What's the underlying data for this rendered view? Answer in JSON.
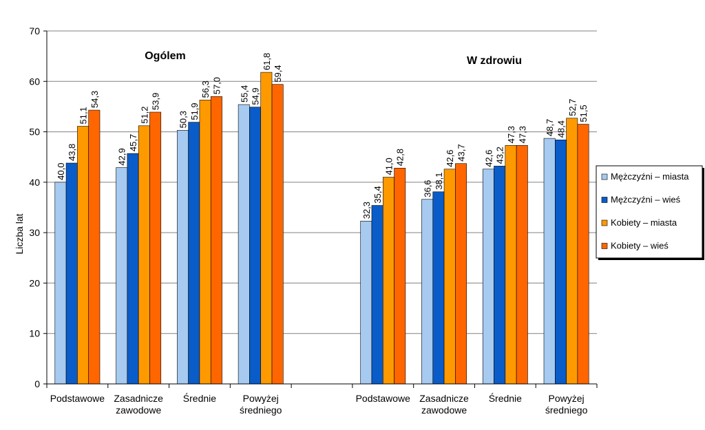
{
  "chart_data": {
    "type": "bar",
    "ylabel": "Liczba lat",
    "ylim": [
      0,
      70
    ],
    "yticks": [
      0,
      10,
      20,
      30,
      40,
      50,
      60,
      70
    ],
    "grid": true,
    "legend_position": "right",
    "groups": [
      {
        "title": "Ogólem",
        "categories": [
          "Podstawowe",
          "Zasadnicze zawodowe",
          "Średnie",
          "Powyżej średniego"
        ],
        "labels": [
          "Podstawowe",
          "Zasadnicze\nzawodowe",
          "Średnie",
          "Powyżej\nśredniego"
        ]
      },
      {
        "title": "W zdrowiu",
        "categories": [
          "Podstawowe",
          "Zasadnicze zawodowe",
          "Średnie",
          "Powyżej średniego"
        ],
        "labels": [
          "Podstawowe",
          "Zasadnicze\nzawodowe",
          "Średnie",
          "Powyżej\nśredniego"
        ]
      }
    ],
    "series": [
      {
        "name": "Mężczyźni – miasta",
        "color": "#A6CAF0",
        "values": [
          40.0,
          42.9,
          50.3,
          55.4,
          32.3,
          36.6,
          42.6,
          48.7
        ],
        "labels": [
          "40,0",
          "42,9",
          "50,3",
          "55,4",
          "32,3",
          "36,6",
          "42,6",
          "48,7"
        ]
      },
      {
        "name": "Mężczyźni – wieś",
        "color": "#0A5CC8",
        "values": [
          43.8,
          45.7,
          51.9,
          54.9,
          35.4,
          38.1,
          43.2,
          48.4
        ],
        "labels": [
          "43,8",
          "45,7",
          "51,9",
          "54,9",
          "35,4",
          "38,1",
          "43,2",
          "48,4"
        ]
      },
      {
        "name": "Kobiety – miasta",
        "color": "#FF9900",
        "values": [
          51.1,
          51.2,
          56.3,
          61.8,
          41.0,
          42.6,
          47.3,
          52.7
        ],
        "labels": [
          "51,1",
          "51,2",
          "56,3",
          "61,8",
          "41,0",
          "42,6",
          "47,3",
          "52,7"
        ]
      },
      {
        "name": "Kobiety – wieś",
        "color": "#FF6600",
        "values": [
          54.3,
          53.9,
          57.0,
          59.4,
          42.8,
          43.7,
          47.3,
          51.5
        ],
        "labels": [
          "54,3",
          "53,9",
          "57,0",
          "59,4",
          "42,8",
          "43,7",
          "47,3",
          "51,5"
        ]
      }
    ]
  }
}
